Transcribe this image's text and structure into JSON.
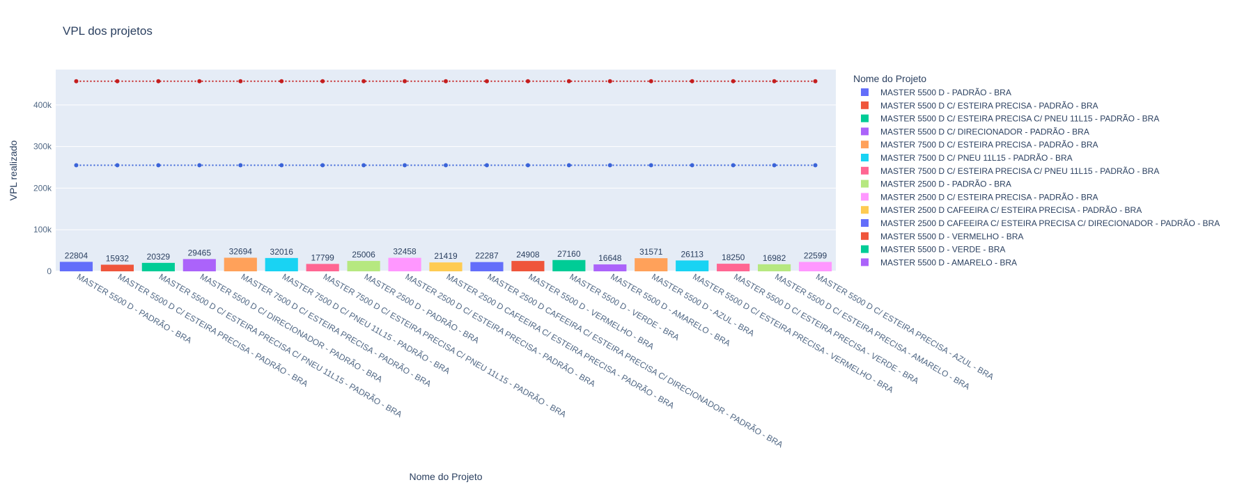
{
  "chart_data": {
    "type": "bar",
    "title": "VPL dos projetos",
    "xlabel": "Nome do Projeto",
    "ylabel": "VPL realizado",
    "ylim": [
      0,
      485000
    ],
    "yticks": [
      0,
      100000,
      200000,
      300000,
      400000
    ],
    "ytick_labels": [
      "0",
      "100k",
      "200k",
      "300k",
      "400k"
    ],
    "grid": true,
    "legend_title": "Nome do Projeto",
    "legend_position": "right",
    "categories": [
      "MASTER 5500 D - PADRÃO - BRA",
      "MASTER 5500 D C/ ESTEIRA PRECISA - PADRÃO - BRA",
      "MASTER 5500 D C/ ESTEIRA PRECISA C/ PNEU 11L15 - PADRÃO - BRA",
      "MASTER 5500 D C/ DIRECIONADOR - PADRÃO - BRA",
      "MASTER 7500 D C/ ESTEIRA PRECISA - PADRÃO - BRA",
      "MASTER 7500 D C/ PNEU 11L15 - PADRÃO - BRA",
      "MASTER 7500 D C/ ESTEIRA PRECISA C/ PNEU 11L15 - PADRÃO - BRA",
      "MASTER 2500 D - PADRÃO - BRA",
      "MASTER 2500 D C/ ESTEIRA PRECISA - PADRÃO - BRA",
      "MASTER 2500 D CAFEEIRA C/ ESTEIRA PRECISA - PADRÃO - BRA",
      "MASTER 2500 D CAFEEIRA C/ ESTEIRA PRECISA C/ DIRECIONADOR - PADRÃO - BRA",
      "MASTER 5500 D - VERMELHO - BRA",
      "MASTER 5500 D - VERDE - BRA",
      "MASTER 5500 D - AMARELO - BRA",
      "MASTER 5500 D - AZUL - BRA",
      "MASTER 5500 D C/ ESTEIRA PRECISA - VERMELHO - BRA",
      "MASTER 5500 D C/ ESTEIRA PRECISA - VERDE - BRA",
      "MASTER 5500 D C/ ESTEIRA PRECISA - AMARELO - BRA",
      "MASTER 5500 D C/ ESTEIRA PRECISA - AZUL - BRA"
    ],
    "values": [
      22804,
      15932,
      20329,
      29465,
      32694,
      32016,
      17799,
      25006,
      32458,
      21419,
      22287,
      24908,
      27160,
      16648,
      31571,
      26113,
      18250,
      16982,
      22599
    ],
    "value_labels": [
      "22804",
      "15932",
      "20329",
      "29465",
      "32694",
      "32016",
      "17799",
      "25006",
      "32458",
      "21419",
      "22287",
      "24908",
      "27160",
      "16648",
      "31571",
      "26113",
      "18250",
      "16982",
      "22599"
    ],
    "bar_colors": [
      "#636efa",
      "#EF553B",
      "#00cc96",
      "#ab63fa",
      "#FFA15A",
      "#19d3f3",
      "#FF6692",
      "#B6E880",
      "#FF97FF",
      "#FECB52",
      "#636efa",
      "#EF553B",
      "#00cc96",
      "#ab63fa",
      "#FFA15A",
      "#19d3f3",
      "#FF6692",
      "#B6E880",
      "#FF97FF"
    ],
    "legend_entries": [
      {
        "name": "MASTER 5500 D - PADRÃO - BRA",
        "color": "#636efa"
      },
      {
        "name": "MASTER 5500 D C/ ESTEIRA PRECISA - PADRÃO - BRA",
        "color": "#EF553B"
      },
      {
        "name": "MASTER 5500 D C/ ESTEIRA PRECISA C/ PNEU 11L15 - PADRÃO - BRA",
        "color": "#00cc96"
      },
      {
        "name": "MASTER 5500 D C/ DIRECIONADOR - PADRÃO - BRA",
        "color": "#ab63fa"
      },
      {
        "name": "MASTER 7500 D C/ ESTEIRA PRECISA - PADRÃO - BRA",
        "color": "#FFA15A"
      },
      {
        "name": "MASTER 7500 D C/ PNEU 11L15 - PADRÃO - BRA",
        "color": "#19d3f3"
      },
      {
        "name": "MASTER 7500 D C/ ESTEIRA PRECISA C/ PNEU 11L15 - PADRÃO - BRA",
        "color": "#FF6692"
      },
      {
        "name": "MASTER 2500 D - PADRÃO - BRA",
        "color": "#B6E880"
      },
      {
        "name": "MASTER 2500 D C/ ESTEIRA PRECISA - PADRÃO - BRA",
        "color": "#FF97FF"
      },
      {
        "name": "MASTER 2500 D CAFEEIRA C/ ESTEIRA PRECISA - PADRÃO - BRA",
        "color": "#FECB52"
      },
      {
        "name": "MASTER 2500 D CAFEEIRA C/ ESTEIRA PRECISA C/ DIRECIONADOR - PADRÃO - BRA",
        "color": "#636efa"
      },
      {
        "name": "MASTER 5500 D - VERMELHO - BRA",
        "color": "#EF553B"
      },
      {
        "name": "MASTER 5500 D - VERDE - BRA",
        "color": "#00cc96"
      },
      {
        "name": "MASTER 5500 D - AMARELO - BRA",
        "color": "#ab63fa"
      }
    ],
    "line_series": [
      {
        "value": 457000,
        "color": "#c41e1e",
        "style": "dotted",
        "markers": true
      },
      {
        "value": 255000,
        "color": "#3a63d8",
        "style": "dotted",
        "markers": true
      }
    ],
    "colors": {
      "plot_bg": "#e5ecf6",
      "grid": "#ffffff",
      "text": "#2a3f5f",
      "tick_text": "#506784"
    }
  }
}
